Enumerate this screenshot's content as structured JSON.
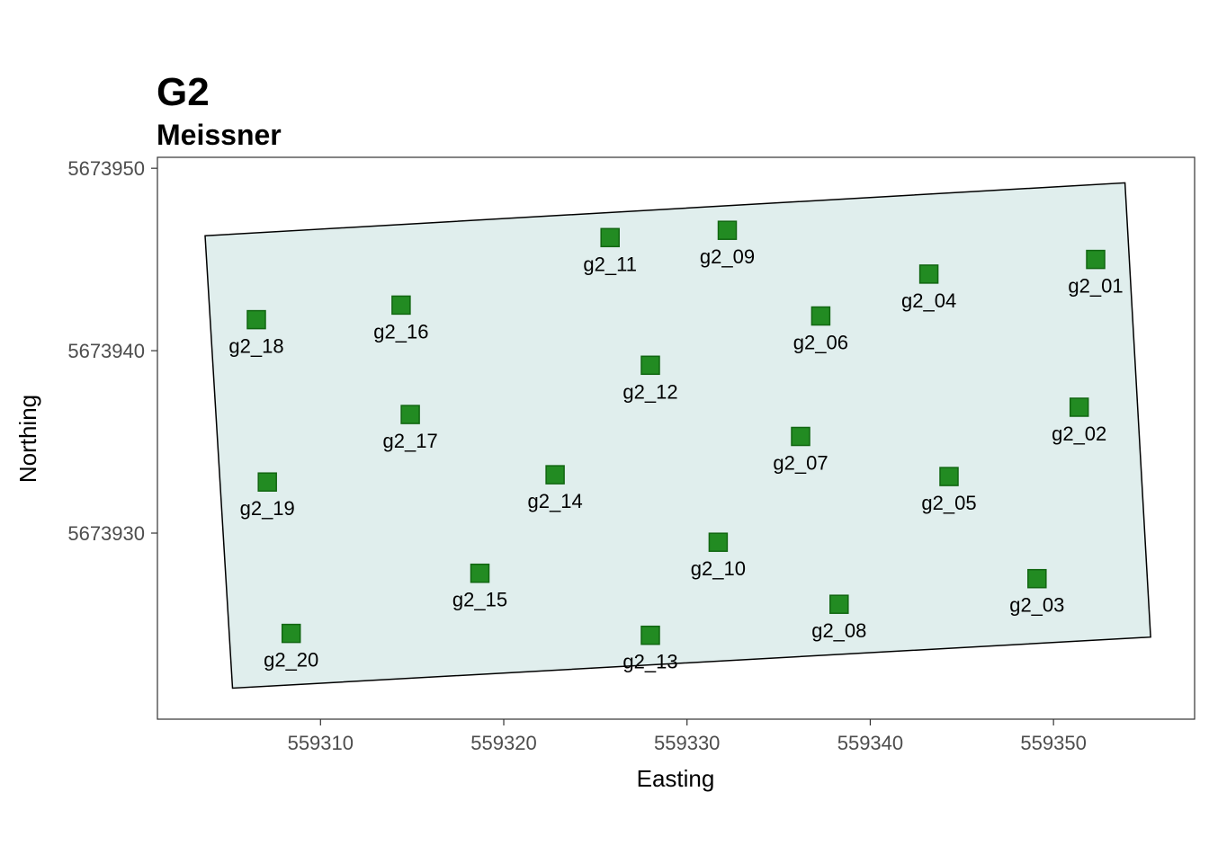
{
  "chart_data": {
    "type": "scatter",
    "title": "G2",
    "subtitle": "Meissner",
    "xlabel": "Easting",
    "ylabel": "Northing",
    "xlim": [
      559301.1,
      559357.7
    ],
    "ylim": [
      5673919.8,
      5673950.6
    ],
    "x_ticks": [
      559310,
      559320,
      559330,
      559340,
      559350
    ],
    "y_ticks": [
      5673930,
      5673940,
      5673950
    ],
    "grid": false,
    "legend": "none",
    "colors": {
      "point_fill": "#228b22",
      "point_stroke": "#116611",
      "polygon_fill": "#e0eeed",
      "polygon_stroke": "#000000",
      "panel_border": "#333333"
    },
    "polygon": [
      [
        559303.7,
        5673946.3
      ],
      [
        559353.9,
        5673949.2
      ],
      [
        559355.3,
        5673924.3
      ],
      [
        559305.2,
        5673921.5
      ]
    ],
    "points": [
      {
        "name": "g2_01",
        "x": 559352.3,
        "y": 5673945.0
      },
      {
        "name": "g2_02",
        "x": 559351.4,
        "y": 5673936.9
      },
      {
        "name": "g2_03",
        "x": 559349.1,
        "y": 5673927.5
      },
      {
        "name": "g2_04",
        "x": 559343.2,
        "y": 5673944.2
      },
      {
        "name": "g2_05",
        "x": 559344.3,
        "y": 5673933.1
      },
      {
        "name": "g2_06",
        "x": 559337.3,
        "y": 5673941.9
      },
      {
        "name": "g2_07",
        "x": 559336.2,
        "y": 5673935.3
      },
      {
        "name": "g2_08",
        "x": 559338.3,
        "y": 5673926.1
      },
      {
        "name": "g2_09",
        "x": 559332.2,
        "y": 5673946.6
      },
      {
        "name": "g2_10",
        "x": 559331.7,
        "y": 5673929.5
      },
      {
        "name": "g2_11",
        "x": 559325.8,
        "y": 5673946.2
      },
      {
        "name": "g2_12",
        "x": 559328.0,
        "y": 5673939.2
      },
      {
        "name": "g2_13",
        "x": 559328.0,
        "y": 5673924.4
      },
      {
        "name": "g2_14",
        "x": 559322.8,
        "y": 5673933.2
      },
      {
        "name": "g2_15",
        "x": 559318.7,
        "y": 5673927.8
      },
      {
        "name": "g2_16",
        "x": 559314.4,
        "y": 5673942.5
      },
      {
        "name": "g2_17",
        "x": 559314.9,
        "y": 5673936.5
      },
      {
        "name": "g2_18",
        "x": 559306.5,
        "y": 5673941.7
      },
      {
        "name": "g2_19",
        "x": 559307.1,
        "y": 5673932.8
      },
      {
        "name": "g2_20",
        "x": 559308.4,
        "y": 5673924.5
      }
    ]
  }
}
